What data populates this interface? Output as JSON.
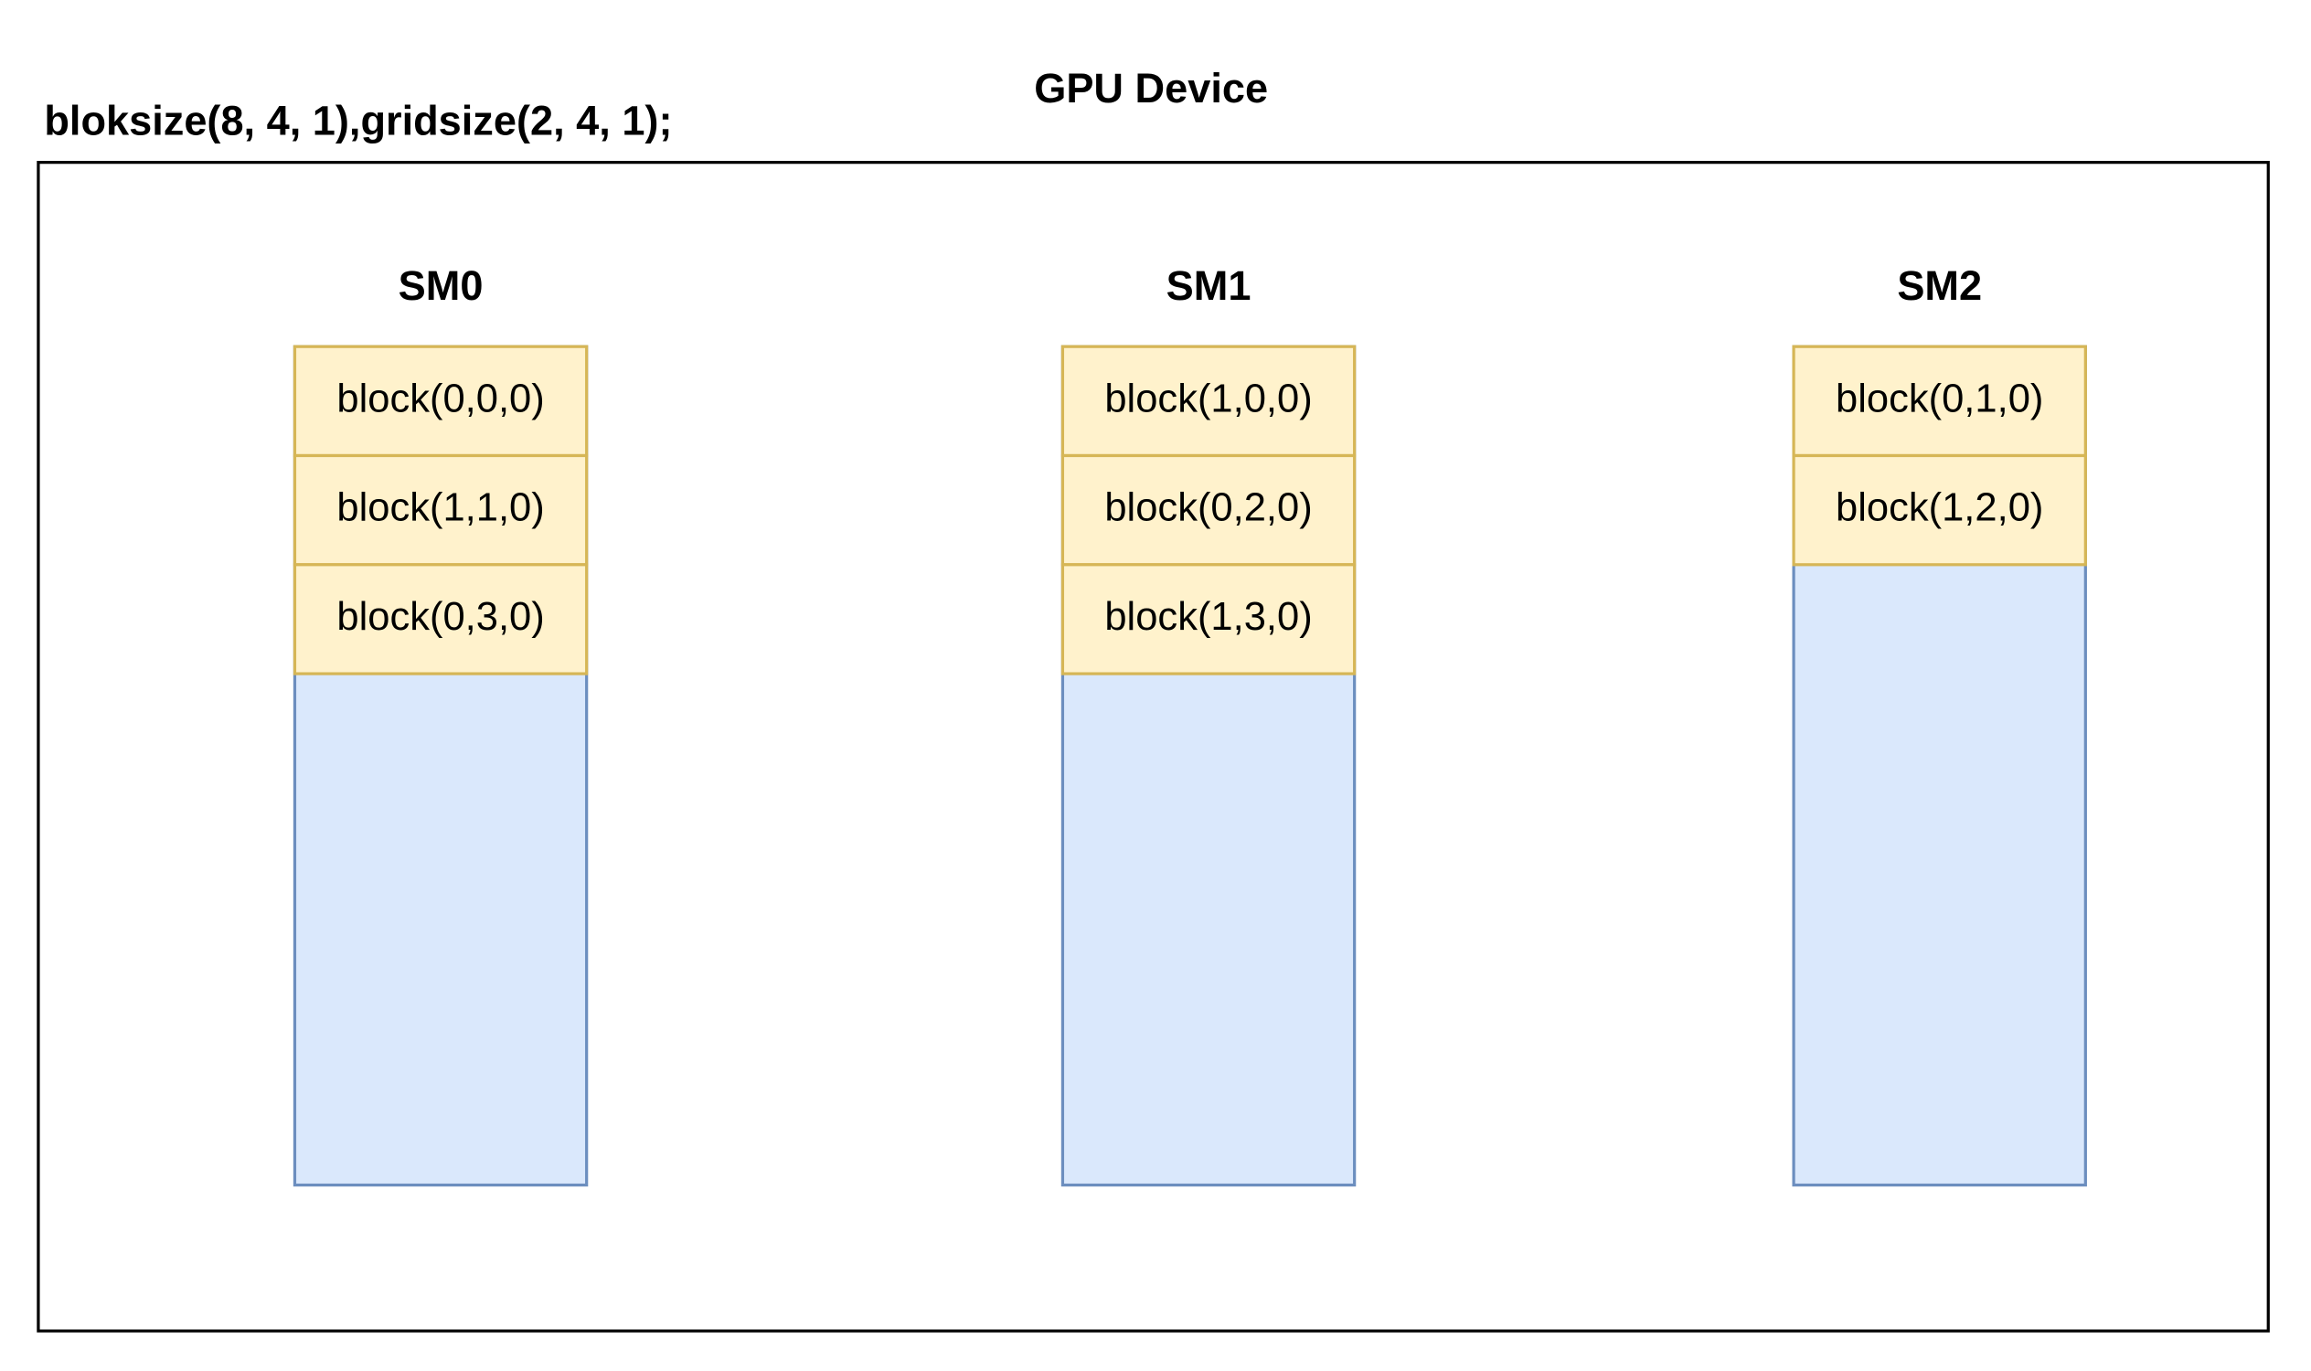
{
  "title": "GPU Device",
  "config": "bloksize(8, 4, 1),gridsize(2, 4, 1);",
  "sms": [
    {
      "label": "SM0",
      "blocks": [
        "block(0,0,0)",
        "block(1,1,0)",
        "block(0,3,0)"
      ]
    },
    {
      "label": "SM1",
      "blocks": [
        "block(1,0,0)",
        "block(0,2,0)",
        "block(1,3,0)"
      ]
    },
    {
      "label": "SM2",
      "blocks": [
        "block(0,1,0)",
        "block(1,2,0)"
      ]
    }
  ]
}
